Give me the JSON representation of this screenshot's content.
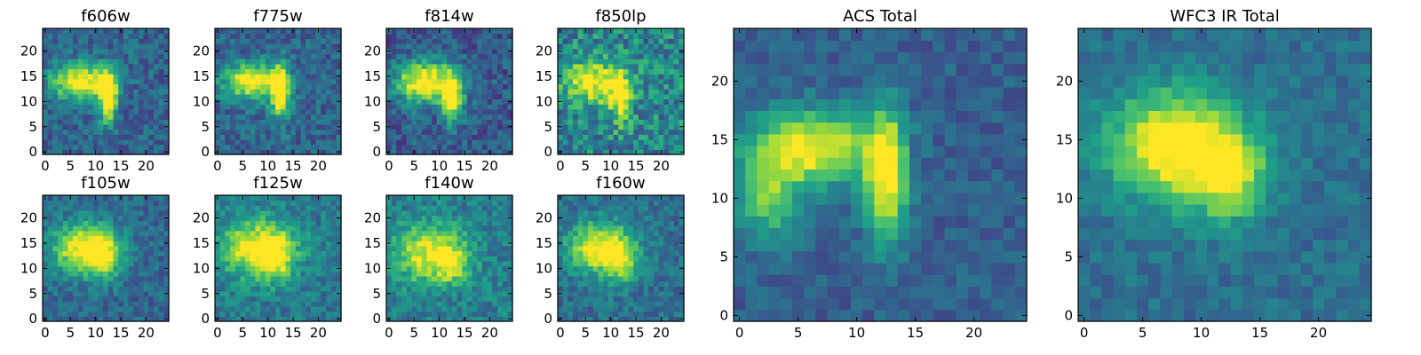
{
  "chart_data": {
    "type": "heatmap",
    "grid_size": 25,
    "colormap": "viridis",
    "colormap_stops": [
      "#440154",
      "#46327e",
      "#365c8d",
      "#277f8e",
      "#1fa187",
      "#4ac16d",
      "#a0da39",
      "#fde725"
    ],
    "panels": [
      {
        "id": "f606w",
        "title": "f606w",
        "x_ticks": [
          "0",
          "5",
          "10",
          "15",
          "20"
        ],
        "y_ticks": [
          "0",
          "5",
          "10",
          "15",
          "20"
        ],
        "sources": [
          {
            "cx": 7,
            "cy": 14,
            "sx": 4.0,
            "sy": 2.5,
            "amp": 0.75
          },
          {
            "cx": 12.5,
            "cy": 11,
            "sx": 1.2,
            "sy": 3.5,
            "amp": 0.85
          }
        ],
        "background": 0.32,
        "noise": 0.14
      },
      {
        "id": "f775w",
        "title": "f775w",
        "x_ticks": [
          "0",
          "5",
          "10",
          "15",
          "20"
        ],
        "y_ticks": [
          "0",
          "5",
          "10",
          "15",
          "20"
        ],
        "sources": [
          {
            "cx": 7,
            "cy": 14,
            "sx": 4.0,
            "sy": 2.5,
            "amp": 0.75
          },
          {
            "cx": 12.5,
            "cy": 12,
            "sx": 1.2,
            "sy": 3.5,
            "amp": 0.9
          }
        ],
        "background": 0.32,
        "noise": 0.14
      },
      {
        "id": "f814w",
        "title": "f814w",
        "x_ticks": [
          "0",
          "5",
          "10",
          "15",
          "20"
        ],
        "y_ticks": [
          "0",
          "5",
          "10",
          "15",
          "20"
        ],
        "sources": [
          {
            "cx": 7,
            "cy": 14,
            "sx": 4.0,
            "sy": 2.8,
            "amp": 0.8
          },
          {
            "cx": 12.5,
            "cy": 11,
            "sx": 1.5,
            "sy": 3.5,
            "amp": 0.75
          }
        ],
        "background": 0.28,
        "noise": 0.15
      },
      {
        "id": "f850lp",
        "title": "f850lp",
        "x_ticks": [
          "0",
          "5",
          "10",
          "15",
          "20"
        ],
        "y_ticks": [
          "0",
          "5",
          "10",
          "15",
          "20"
        ],
        "sources": [
          {
            "cx": 7,
            "cy": 14,
            "sx": 4.0,
            "sy": 3.0,
            "amp": 0.6
          },
          {
            "cx": 12,
            "cy": 11,
            "sx": 1.5,
            "sy": 3.5,
            "amp": 0.55
          }
        ],
        "background": 0.45,
        "noise": 0.22
      },
      {
        "id": "f105w",
        "title": "f105w",
        "x_ticks": [
          "0",
          "5",
          "10",
          "15",
          "20"
        ],
        "y_ticks": [
          "0",
          "5",
          "10",
          "15",
          "20"
        ],
        "sources": [
          {
            "cx": 8,
            "cy": 14,
            "sx": 4.5,
            "sy": 3.5,
            "amp": 0.75
          },
          {
            "cx": 12,
            "cy": 12,
            "sx": 2.0,
            "sy": 3.0,
            "amp": 0.35
          }
        ],
        "background": 0.33,
        "noise": 0.12
      },
      {
        "id": "f125w",
        "title": "f125w",
        "x_ticks": [
          "0",
          "5",
          "10",
          "15",
          "20"
        ],
        "y_ticks": [
          "0",
          "5",
          "10",
          "15",
          "20"
        ],
        "sources": [
          {
            "cx": 8,
            "cy": 14,
            "sx": 5.0,
            "sy": 4.0,
            "amp": 0.65
          },
          {
            "cx": 12,
            "cy": 12,
            "sx": 2.0,
            "sy": 3.0,
            "amp": 0.35
          }
        ],
        "background": 0.4,
        "noise": 0.13
      },
      {
        "id": "f140w",
        "title": "f140w",
        "x_ticks": [
          "0",
          "5",
          "10",
          "15",
          "20"
        ],
        "y_ticks": [
          "0",
          "5",
          "10",
          "15",
          "20"
        ],
        "sources": [
          {
            "cx": 8,
            "cy": 13,
            "sx": 5.0,
            "sy": 4.0,
            "amp": 0.55
          },
          {
            "cx": 12.5,
            "cy": 11,
            "sx": 2.0,
            "sy": 2.5,
            "amp": 0.35
          }
        ],
        "background": 0.42,
        "noise": 0.14
      },
      {
        "id": "f160w",
        "title": "f160w",
        "x_ticks": [
          "0",
          "5",
          "10",
          "15",
          "20"
        ],
        "y_ticks": [
          "0",
          "5",
          "10",
          "15",
          "20"
        ],
        "sources": [
          {
            "cx": 8,
            "cy": 14,
            "sx": 4.5,
            "sy": 3.5,
            "amp": 0.7
          },
          {
            "cx": 12,
            "cy": 11,
            "sx": 2.0,
            "sy": 3.0,
            "amp": 0.35
          }
        ],
        "background": 0.36,
        "noise": 0.13
      },
      {
        "id": "acs-total",
        "title": "ACS Total",
        "x_ticks": [
          "0",
          "5",
          "10",
          "15",
          "20"
        ],
        "y_ticks": [
          "0",
          "5",
          "10",
          "15",
          "20"
        ],
        "sources": [
          {
            "cx": 6.5,
            "cy": 14.5,
            "sx": 3.5,
            "sy": 2.2,
            "amp": 0.7
          },
          {
            "cx": 2.5,
            "cy": 10.5,
            "sx": 2.0,
            "sy": 3.0,
            "amp": 0.45
          },
          {
            "cx": 12.5,
            "cy": 12,
            "sx": 1.2,
            "sy": 4.0,
            "amp": 0.75
          }
        ],
        "background": 0.3,
        "noise": 0.09
      },
      {
        "id": "wfc3-ir-total",
        "title": "WFC3 IR Total",
        "x_ticks": [
          "0",
          "5",
          "10",
          "15",
          "20"
        ],
        "y_ticks": [
          "0",
          "5",
          "10",
          "15",
          "20"
        ],
        "sources": [
          {
            "cx": 8,
            "cy": 14.5,
            "sx": 4.0,
            "sy": 3.2,
            "amp": 0.75
          },
          {
            "cx": 12.5,
            "cy": 11.5,
            "sx": 2.2,
            "sy": 2.5,
            "amp": 0.45
          }
        ],
        "background": 0.36,
        "noise": 0.09
      }
    ]
  }
}
